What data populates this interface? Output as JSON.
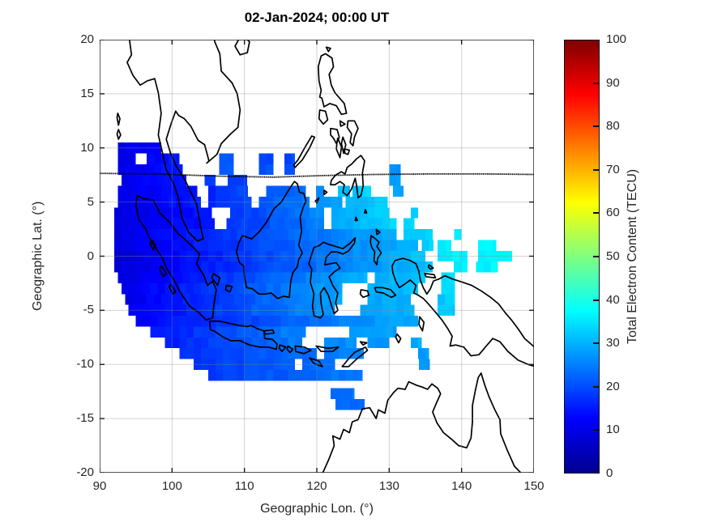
{
  "figure": {
    "title": "02-Jan-2024; 00:00 UT",
    "background": "#ffffff"
  },
  "axes": {
    "xlabel": "Geographic Lon. (°)",
    "ylabel": "Geographic Lat. (°)",
    "xticks": [
      90,
      100,
      110,
      120,
      130,
      140,
      150
    ],
    "yticks": [
      20,
      15,
      10,
      5,
      0,
      -5,
      -10,
      -15,
      -20
    ],
    "xlim": [
      90,
      150
    ],
    "ylim": [
      -20,
      20
    ],
    "grid": true,
    "grid_color": "#8a8a8a",
    "coast_color": "#000000",
    "box_color": "#1a1a1a"
  },
  "colorbar": {
    "label": "Total Electron Content (TECU)",
    "ticks": [
      0,
      10,
      20,
      30,
      40,
      50,
      60,
      70,
      80,
      90,
      100
    ],
    "clim": [
      0,
      100
    ],
    "colormap": "jet",
    "stops": [
      [
        0,
        "#00008F"
      ],
      [
        12.5,
        "#0000FF"
      ],
      [
        37.5,
        "#00FFFF"
      ],
      [
        62.5,
        "#FFFF00"
      ],
      [
        87.5,
        "#FF0000"
      ],
      [
        100,
        "#800000"
      ]
    ]
  },
  "chart_data": {
    "type": "heatmap",
    "title": "02-Jan-2024; 00:00 UT",
    "xlabel": "Geographic Lon. (°)",
    "ylabel": "Geographic Lat. (°)",
    "value_label": "Total Electron Content (TECU)",
    "xlim": [
      90,
      150
    ],
    "ylim": [
      -20,
      20
    ],
    "clim": [
      0,
      100
    ],
    "cell_deg": 1,
    "legend": "colorbar-right",
    "rows": [
      {
        "lat": 10.5,
        "runs": [
          [
            92.5,
            98.5,
            10,
            12
          ]
        ]
      },
      {
        "lat": 9.5,
        "runs": [
          [
            92.5,
            95,
            10,
            11
          ],
          [
            96.5,
            101,
            12,
            15
          ],
          [
            106.5,
            108.5,
            20,
            21
          ],
          [
            112,
            114,
            18,
            19
          ],
          [
            115.5,
            117,
            19,
            20
          ]
        ]
      },
      {
        "lat": 8.5,
        "runs": [
          [
            92.5,
            101.5,
            10,
            15
          ],
          [
            106.5,
            108.5,
            20,
            21
          ],
          [
            112,
            114,
            19,
            20
          ],
          [
            115.5,
            117,
            20,
            21
          ],
          [
            130,
            131.6,
            26,
            27
          ]
        ]
      },
      {
        "lat": 7.5,
        "runs": [
          [
            93,
            102,
            10,
            15
          ],
          [
            104.5,
            106,
            17,
            18
          ],
          [
            107.7,
            110.4,
            18,
            19
          ],
          [
            130,
            131.6,
            27,
            28
          ]
        ]
      },
      {
        "lat": 6.5,
        "runs": [
          [
            92.5,
            103.5,
            10,
            14
          ],
          [
            105,
            110.5,
            16,
            20
          ],
          [
            113,
            118.5,
            20,
            23
          ],
          [
            119.9,
            121,
            27,
            27
          ],
          [
            122.9,
            124.6,
            31,
            32
          ],
          [
            124.9,
            127.5,
            32,
            34
          ],
          [
            130.5,
            132,
            28,
            29
          ]
        ]
      },
      {
        "lat": 5.5,
        "runs": [
          [
            92.5,
            104,
            10,
            15
          ],
          [
            105,
            111,
            16,
            20
          ],
          [
            112,
            119,
            20,
            25
          ],
          [
            119.9,
            123.5,
            27,
            29
          ],
          [
            124,
            129.8,
            30,
            34
          ]
        ]
      },
      {
        "lat": 4.5,
        "runs": [
          [
            92,
            105.5,
            9,
            15
          ],
          [
            108,
            121,
            17,
            26
          ],
          [
            122,
            130,
            28,
            34
          ],
          [
            133,
            134,
            33,
            33
          ]
        ]
      },
      {
        "lat": 3.5,
        "runs": [
          [
            92,
            105.9,
            9,
            15
          ],
          [
            107.5,
            121,
            17,
            25
          ],
          [
            122,
            131,
            28,
            34
          ],
          [
            132,
            133.5,
            33,
            34
          ]
        ]
      },
      {
        "lat": 2.5,
        "runs": [
          [
            92,
            131,
            9,
            30
          ],
          [
            132,
            136,
            32,
            34
          ],
          [
            139,
            140,
            35,
            35
          ]
        ]
      },
      {
        "lat": 1.5,
        "runs": [
          [
            92,
            134,
            9,
            31
          ],
          [
            134.5,
            136.1,
            33,
            34
          ],
          [
            136.7,
            138.6,
            35,
            36
          ],
          [
            142.3,
            144.8,
            36,
            37
          ]
        ]
      },
      {
        "lat": 0.5,
        "runs": [
          [
            92,
            135,
            8,
            32
          ],
          [
            136.7,
            140.8,
            35,
            37
          ],
          [
            142.3,
            147,
            36,
            38
          ]
        ]
      },
      {
        "lat": -0.5,
        "runs": [
          [
            92,
            136,
            8,
            32
          ],
          [
            138.9,
            140.8,
            35,
            36
          ],
          [
            142,
            145,
            36,
            37
          ]
        ]
      },
      {
        "lat": -1.5,
        "runs": [
          [
            92.5,
            127,
            9,
            30
          ],
          [
            128,
            135,
            30,
            32
          ],
          [
            137.2,
            139.1,
            33,
            34
          ]
        ]
      },
      {
        "lat": -2.5,
        "runs": [
          [
            93,
            123.5,
            10,
            29
          ],
          [
            127,
            134,
            29,
            31
          ],
          [
            137.2,
            139.1,
            33,
            34
          ]
        ]
      },
      {
        "lat": -3.5,
        "runs": [
          [
            93.5,
            123.5,
            10,
            29
          ],
          [
            127,
            133,
            29,
            30
          ],
          [
            136.7,
            139.1,
            32,
            33
          ]
        ]
      },
      {
        "lat": -4.5,
        "runs": [
          [
            94,
            122.5,
            11,
            28
          ],
          [
            126,
            133.5,
            29,
            30
          ],
          [
            136.7,
            139.1,
            32,
            33
          ]
        ]
      },
      {
        "lat": -5.5,
        "runs": [
          [
            95,
            134,
            12,
            30
          ]
        ]
      },
      {
        "lat": -6.5,
        "runs": [
          [
            97,
            118.5,
            14,
            26
          ],
          [
            124.5,
            131,
            27,
            28
          ]
        ]
      },
      {
        "lat": -7.5,
        "runs": [
          [
            99,
            118,
            15,
            25
          ],
          [
            121,
            125.5,
            25,
            27
          ],
          [
            127,
            130,
            27,
            28
          ],
          [
            133,
            134.5,
            29,
            30
          ]
        ]
      },
      {
        "lat": -8.5,
        "runs": [
          [
            101,
            120,
            16,
            24
          ],
          [
            121,
            126.5,
            24,
            26
          ],
          [
            134,
            135.5,
            28,
            28
          ]
        ]
      },
      {
        "lat": -9.5,
        "runs": [
          [
            103,
            117,
            17,
            22
          ],
          [
            118,
            122.5,
            22,
            24
          ],
          [
            134.1,
            135.6,
            28,
            28
          ]
        ]
      },
      {
        "lat": -10.5,
        "runs": [
          [
            105,
            126.3,
            18,
            25
          ]
        ]
      },
      {
        "lat": -12.2,
        "runs": [
          [
            121.9,
            125.2,
            22,
            24
          ]
        ]
      },
      {
        "lat": -13.2,
        "runs": [
          [
            122.6,
            126.6,
            22,
            24
          ]
        ]
      }
    ],
    "dip_equator": [
      [
        90,
        7.65
      ],
      [
        98,
        7.6
      ],
      [
        106,
        7.4
      ],
      [
        114,
        7.3
      ],
      [
        121,
        7.45
      ],
      [
        128,
        7.55
      ],
      [
        136,
        7.6
      ],
      [
        143,
        7.6
      ],
      [
        150,
        7.55
      ]
    ]
  }
}
